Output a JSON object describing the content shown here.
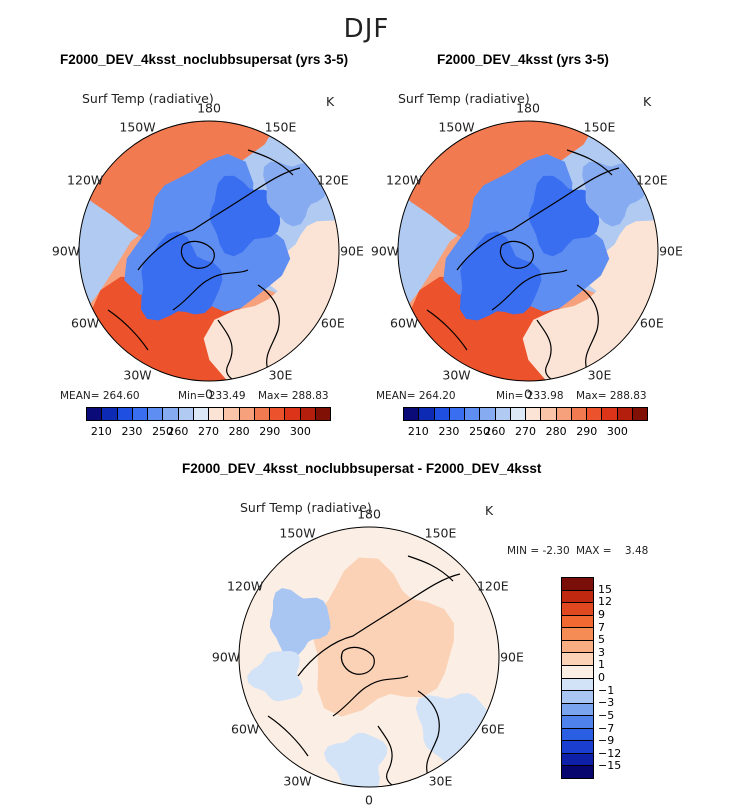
{
  "season": "DJF",
  "panels": [
    {
      "title": "F2000_DEV_4ksst_noclubbsupersat (yrs 3-5)",
      "variable": "Surf Temp (radiative)",
      "units": "K",
      "stats": {
        "mean": "MEAN= 264.60",
        "min": "Min= 233.49",
        "max": "Max= 288.83"
      }
    },
    {
      "title": "F2000_DEV_4ksst (yrs 3-5)",
      "variable": "Surf Temp (radiative)",
      "units": "K",
      "stats": {
        "mean": "MEAN= 264.20",
        "min": "Min= 233.98",
        "max": "Max= 288.83"
      }
    }
  ],
  "diff_panel": {
    "title": "F2000_DEV_4ksst_noclubbsupersat - F2000_DEV_4ksst",
    "variable": "Surf Temp (radiative)",
    "units": "K",
    "min_label": "MIN = ",
    "min_value": "-2.30",
    "max_label": "MAX = ",
    "max_value": "3.48"
  },
  "lon_labels": [
    "180",
    "150E",
    "120E",
    "90E",
    "60E",
    "30E",
    "0",
    "30W",
    "60W",
    "90W",
    "120W",
    "150W"
  ],
  "abs_colorbar": {
    "colors": [
      "#0a0a78",
      "#0d2ab5",
      "#1f4fe0",
      "#3a6ef0",
      "#5f8ef2",
      "#86abf0",
      "#b0caf2",
      "#dde8f7",
      "#fbe4d6",
      "#f9c4a8",
      "#f6a07c",
      "#f27a50",
      "#ec522c",
      "#db3418",
      "#b31f0c",
      "#801005"
    ],
    "ticks": [
      "210",
      "230",
      "250",
      "260",
      "270",
      "280",
      "290",
      "300"
    ]
  },
  "diff_colorbar": {
    "colors": [
      "#7a0f0a",
      "#c0280f",
      "#e04820",
      "#f26a32",
      "#f58c56",
      "#f8ad82",
      "#fbd2b6",
      "#fbeee4",
      "#d2e2f7",
      "#a9c6f3",
      "#7aa4ee",
      "#4f82ea",
      "#2a5fe4",
      "#1a3fd0",
      "#0e1fa8",
      "#06066e"
    ],
    "ticks": [
      "15",
      "12",
      "9",
      "7",
      "5",
      "3",
      "1",
      "0",
      "−1",
      "−3",
      "−5",
      "−7",
      "−9",
      "−12",
      "−15"
    ]
  }
}
